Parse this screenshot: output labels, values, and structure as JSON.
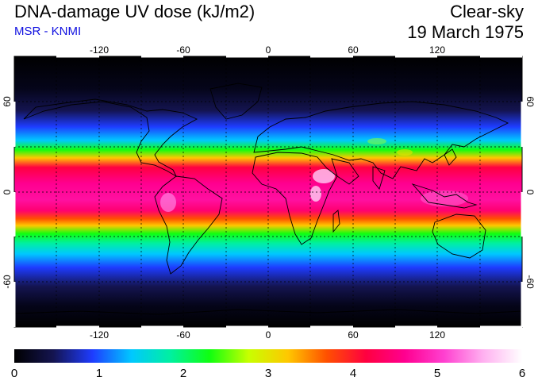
{
  "header": {
    "title": "DNA-damage UV dose (kJ/m2)",
    "subtitle": "MSR - KNMI",
    "condition": "Clear-sky",
    "date": "19 March 1975"
  },
  "map": {
    "projection": "equirectangular",
    "lon_range": [
      -180,
      180
    ],
    "lat_range": [
      -90,
      90
    ],
    "lon_ticks": [
      "-120",
      "-60",
      "0",
      "60",
      "120"
    ],
    "lat_ticks": [
      "60",
      "0",
      "-60"
    ],
    "graticule": "dashed 30-degree grid",
    "overlay": "coastlines"
  },
  "colorbar": {
    "min": 0,
    "max": 6,
    "labels": [
      "0",
      "1",
      "2",
      "3",
      "4",
      "5",
      "6"
    ],
    "colors": [
      "#000000",
      "#141450",
      "#1e3cff",
      "#00c8ff",
      "#00f0a0",
      "#10ff10",
      "#c8ff00",
      "#ffc800",
      "#ff5000",
      "#ff0040",
      "#ff0090",
      "#ff40d0",
      "#ffb0f0",
      "#ffffff"
    ]
  }
}
